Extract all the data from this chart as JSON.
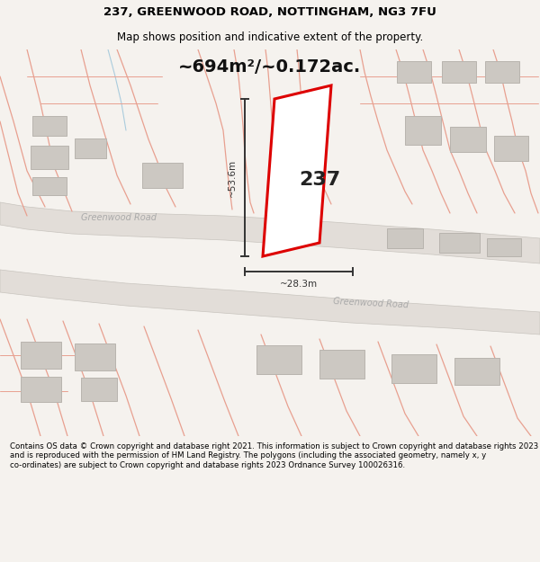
{
  "title_line1": "237, GREENWOOD ROAD, NOTTINGHAM, NG3 7FU",
  "title_line2": "Map shows position and indicative extent of the property.",
  "area_text": "~694m²/~0.172ac.",
  "label_237": "237",
  "dim_vertical": "~53.6m",
  "dim_horizontal": "~28.3m",
  "road_label1": "Greenwood Road",
  "road_label2": "Greenwood Road",
  "footer_text": "Contains OS data © Crown copyright and database right 2021. This information is subject to Crown copyright and database rights 2023 and is reproduced with the permission of HM Land Registry. The polygons (including the associated geometry, namely x, y co-ordinates) are subject to Crown copyright and database rights 2023 Ordnance Survey 100026316.",
  "bg_color": "#f5f2ee",
  "map_bg": "#f5f2ee",
  "footer_bg": "#f5f2ee",
  "road_fill": "#e2ddd8",
  "plot_outline": "#dd0000",
  "plot_fill": "#ffffff",
  "building_fill": "#ccc8c2",
  "building_outline": "#b8b4ae",
  "street_line_color": "#e8a090",
  "dim_color": "#333333",
  "road_text_color": "#aaaaaa",
  "blue_line_color": "#aaccdd"
}
